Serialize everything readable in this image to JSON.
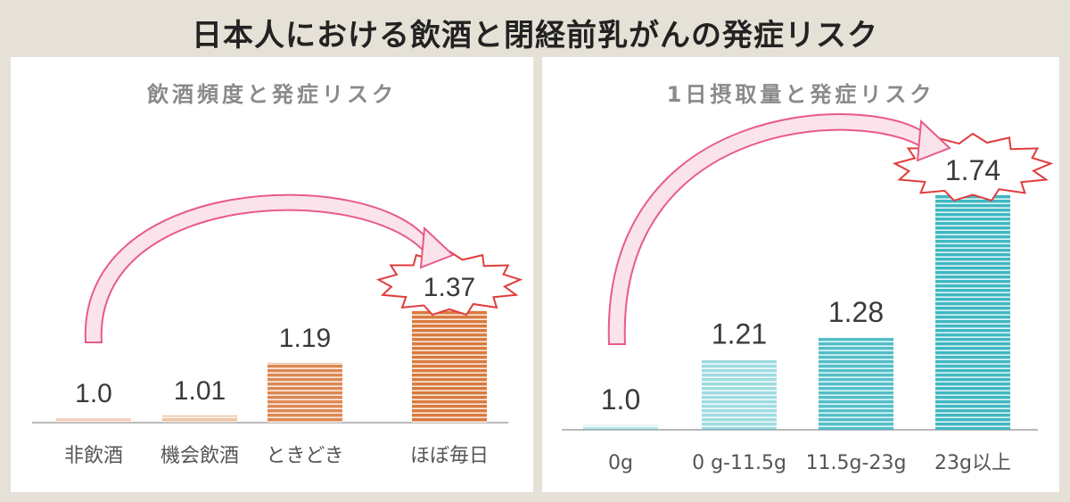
{
  "title": "日本人における飲酒と閉経前乳がんの発症リスク",
  "colors": {
    "left_bar": "#d97a3e",
    "right_bar": "#3fb8c2",
    "arrow": "#e85a8a"
  },
  "chart_data": [
    {
      "type": "bar",
      "title": "飲酒頻度と発症リスク",
      "categories": [
        "非飲酒",
        "機会飲酒",
        "ときどき",
        "ほぼ毎日"
      ],
      "values": [
        1.0,
        1.01,
        1.19,
        1.37
      ],
      "value_labels": [
        "1.0",
        "1.01",
        "1.19",
        "1.37"
      ],
      "highlight_index": 3,
      "bar_opacity": [
        0.35,
        0.45,
        0.9,
        1.0
      ]
    },
    {
      "type": "bar",
      "title": "1日摂取量と発症リスク",
      "categories": [
        "0g",
        "0 g-11.5g",
        "11.5g-23g",
        "23g以上"
      ],
      "values": [
        1.0,
        1.21,
        1.28,
        1.74
      ],
      "value_labels": [
        "1.0",
        "1.21",
        "1.28",
        "1.74"
      ],
      "highlight_index": 3,
      "bar_opacity": [
        0.35,
        0.5,
        0.9,
        1.0
      ]
    }
  ]
}
